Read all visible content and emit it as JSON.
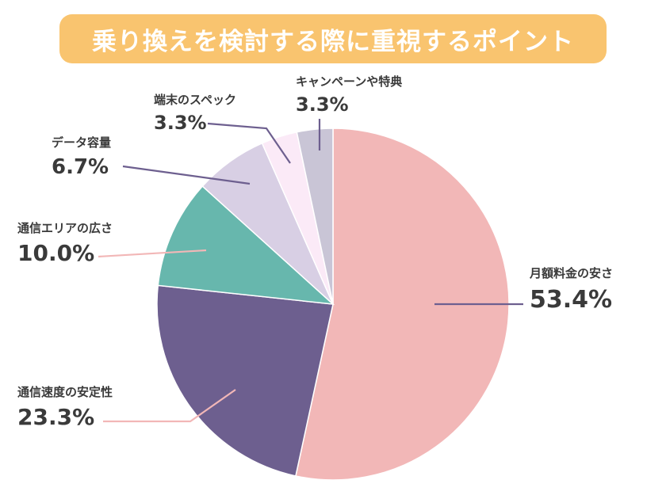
{
  "chart_data": {
    "type": "pie",
    "title": "乗り換えを検討する際に重視するポイント",
    "slices": [
      {
        "label": "月額料金の安さ",
        "value": 53.4,
        "display": "53.4%",
        "color": "#f2b7b7",
        "line": "#6d5f8f"
      },
      {
        "label": "通信速度の安定性",
        "value": 23.3,
        "display": "23.3%",
        "color": "#6d5f8f",
        "line": "#f2b7b7"
      },
      {
        "label": "通信エリアの広さ",
        "value": 10.0,
        "display": "10.0%",
        "color": "#67b7ad",
        "line": "#f2b7b7"
      },
      {
        "label": "データ容量",
        "value": 6.7,
        "display": "6.7%",
        "color": "#d8cfe4",
        "line": "#6d5f8f"
      },
      {
        "label": "端末のスペック",
        "value": 3.3,
        "display": "3.3%",
        "color": "#fbeaf7",
        "line": "#6d5f8f"
      },
      {
        "label": "キャンペーンや特典",
        "value": 3.3,
        "display": "3.3%",
        "color": "#c9c5d6",
        "line": "#6d5f8f"
      }
    ]
  }
}
